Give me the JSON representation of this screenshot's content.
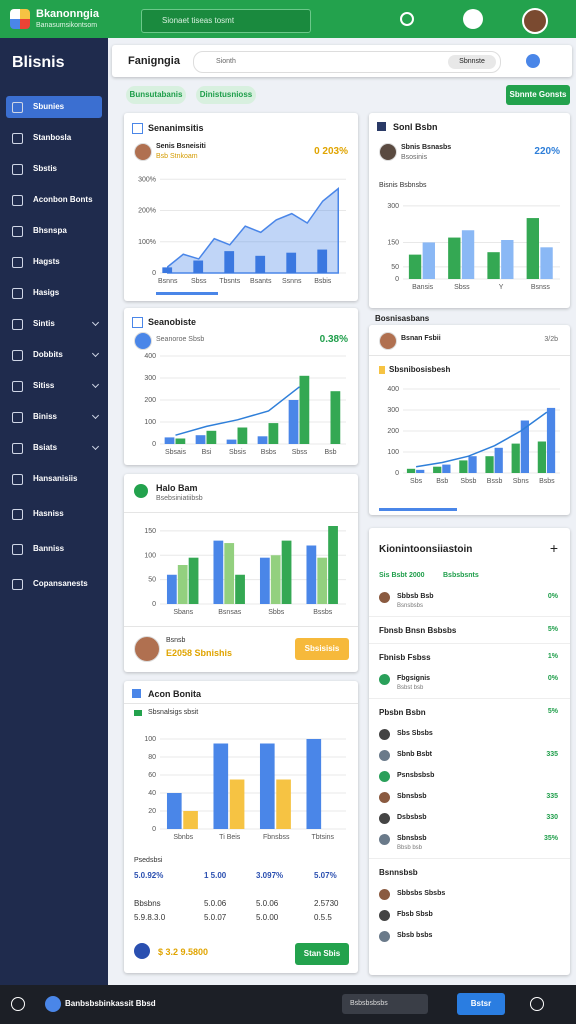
{
  "topbar": {
    "app_name": "Bkanonngia",
    "app_subtitle": "Banasumsikontsom",
    "search": "Sionaet tiseas tosmt"
  },
  "sidebar": {
    "title": "Blisnis",
    "items": [
      "Sbunies",
      "Stanbosla",
      "Sbstis",
      "Aconbon Bonts",
      "Bhsnspa",
      "Hagsts",
      "Hasigs",
      "Sintis",
      "Dobbits",
      "Sitiss",
      "Biniss",
      "Bsiats",
      "Hansanisiis",
      "Hasniss",
      "Banniss",
      "Copansanests"
    ]
  },
  "header": {
    "title": "Fanigngia",
    "search": "Sionth",
    "search_button": "Sbnnste",
    "chips": [
      "Bunsutabanis",
      "Dinistusnioss"
    ],
    "action": "Sbnnte Gonsts"
  },
  "card1": {
    "title": "Senanimsitis",
    "person": "Senis Bsneisiti",
    "person_sub": "Bsb Stnkoam",
    "metric": "0 203%",
    "chart": {
      "categories": [
        "Bsnns",
        null,
        "Sbss",
        null,
        "Tbsnts",
        null,
        "Bsants",
        null,
        "Ssnns",
        null,
        "Bsbis",
        null
      ],
      "series": [
        {
          "type": "area",
          "color": "#4a86e8",
          "values": [
            20,
            60,
            45,
            110,
            90,
            150,
            130,
            170,
            190,
            160,
            230,
            270
          ]
        },
        {
          "type": "bar",
          "color": "#3b78e0",
          "values": [
            18,
            null,
            40,
            null,
            70,
            null,
            55,
            null,
            65,
            null,
            75,
            null
          ]
        }
      ],
      "ylim": [
        0,
        320
      ],
      "yticks": [
        0,
        {
          "value": 100,
          "label": "100%"
        },
        {
          "value": 200,
          "label": "200%"
        },
        {
          "value": 300,
          "label": "300%"
        }
      ]
    }
  },
  "card2": {
    "title": "Seanobiste",
    "person": "Seanoroe Sbsb",
    "metric": "0.38%",
    "chart": {
      "categories": [
        "Sbsais",
        "Bsi",
        "Sbsis",
        "Bsbs",
        "Sbss",
        "Bsb"
      ],
      "series": [
        {
          "type": "bar",
          "color": "#4a86e8",
          "values": [
            30,
            40,
            20,
            35,
            200,
            null
          ]
        },
        {
          "type": "bar",
          "color": "#34a853",
          "values": [
            25,
            60,
            75,
            95,
            310,
            240
          ]
        },
        {
          "type": "line",
          "color": "#2f7fd9",
          "values": [
            40,
            80,
            110,
            150,
            260,
            null
          ]
        }
      ],
      "ylim": [
        0,
        400
      ],
      "yticks": [
        0,
        100,
        200,
        300,
        400
      ]
    }
  },
  "card3": {
    "title": "Halo Bam",
    "subtitle": "Bsebsiniatiibsb",
    "footer_name": "Bsnsb",
    "footer_value": "E2058 Sbnishis",
    "button": "Sbsisisis",
    "chart": {
      "categories": [
        "Sbans",
        "Bsnsas",
        "Sbbs",
        "Bssbs"
      ],
      "series": [
        {
          "type": "bar",
          "color": "#4a86e8",
          "values": [
            60,
            130,
            95,
            120
          ]
        },
        {
          "type": "bar",
          "color": "#93d07f",
          "values": [
            80,
            125,
            100,
            95
          ]
        },
        {
          "type": "bar",
          "color": "#34a853",
          "values": [
            95,
            60,
            130,
            160
          ]
        }
      ],
      "ylim": [
        0,
        160
      ],
      "yticks": [
        0,
        50,
        100,
        150
      ]
    }
  },
  "card4": {
    "title": "Acon Bonita",
    "select": "Sbsnalsigs sbsit",
    "footer_value": "$ 3.2 9.5800",
    "button": "Stan Sbis",
    "chart": {
      "categories": [
        "Sbnbs",
        "Ti Beis",
        "Fbnsbss",
        "Tbtsins"
      ],
      "series": [
        {
          "type": "bar",
          "color": "#4a86e8",
          "values": [
            40,
            95,
            95,
            100
          ]
        },
        {
          "type": "bar",
          "color": "#f6c343",
          "values": [
            20,
            55,
            55,
            null
          ]
        }
      ],
      "ylim": [
        0,
        100
      ],
      "yticks": [
        0,
        20,
        40,
        60,
        80,
        100
      ]
    },
    "table": {
      "title": "Psedsbsi",
      "rows": [
        [
          "5.0.92%",
          "1 5.00",
          "3.097%",
          "5.07%"
        ],
        [
          "Bbsbns",
          "5.0.06",
          "5.0.06",
          "2.5730"
        ],
        [
          "5.9.8.3.0",
          "5.0.07",
          "5.0.00",
          "0.5.5"
        ]
      ]
    }
  },
  "card5": {
    "title": "Sonl Bsbn",
    "person": "Sbnis Bsnasbs",
    "person_sub": "Bsosinis",
    "metric": "220%",
    "subtitle": "Bisnis Bsbnsbs",
    "chart": {
      "categories": [
        "Bansis",
        "Sbss",
        "Y",
        "Bsnss"
      ],
      "series": [
        {
          "type": "bar",
          "color": "#34a853",
          "values": [
            100,
            170,
            110,
            250
          ]
        },
        {
          "type": "bar",
          "color": "#8ab8f5",
          "values": [
            150,
            200,
            160,
            130
          ]
        }
      ],
      "ylim": [
        0,
        320
      ],
      "yticks": [
        0,
        50,
        150,
        300
      ]
    }
  },
  "section": {
    "title": "Bosnisasbans"
  },
  "card6": {
    "person": "Bsnan Fsbii",
    "person_sub": "3/2b",
    "title": "Sbsnibosisbesh",
    "chart": {
      "categories": [
        "Sbs",
        "Bsb",
        "Sbsb",
        "Bssb",
        "Sbns",
        "Bsbs"
      ],
      "series": [
        {
          "type": "bar",
          "color": "#34a853",
          "values": [
            20,
            30,
            60,
            80,
            140,
            150
          ]
        },
        {
          "type": "bar",
          "color": "#4a86e8",
          "values": [
            15,
            40,
            80,
            120,
            250,
            310
          ]
        },
        {
          "type": "line",
          "color": "#2f7fd9",
          "values": [
            30,
            50,
            80,
            130,
            200,
            290
          ]
        }
      ],
      "ylim": [
        0,
        400
      ],
      "yticks": [
        0,
        100,
        200,
        300,
        400
      ]
    }
  },
  "card7": {
    "title": "Kionintoonsiiastoin",
    "summary": [
      "Sis Bsbt 2000",
      "Bsbsbsnts"
    ],
    "rows": [
      {
        "name": "Sbbsb Bsb",
        "sub": "Bsnsbsbs",
        "value": "0%"
      },
      {
        "heading": "Fbnsb Bnsn Bsbsbs",
        "value": "5%"
      },
      {
        "heading": "Fbnisb Fsbss",
        "value": "1%"
      },
      {
        "name": "Fbgsignis",
        "sub": "Bsbst bsb",
        "value": "0%"
      },
      {
        "heading": "Pbsbn Bsbn",
        "value": "5%"
      },
      {
        "name": "Sbs Sbsbs"
      },
      {
        "name": "Sbnb Bsbt",
        "value": "335"
      },
      {
        "name": "Psnsbsbsb"
      },
      {
        "name": "Sbnsbsb",
        "value": "335"
      },
      {
        "name": "Dsbsbsb",
        "value": "330"
      },
      {
        "name": "Sbnsbsb",
        "sub": "Bbsb bsb",
        "value": "35%"
      },
      {
        "heading": "Bsnnsbsb"
      },
      {
        "name": "Sbbsbs Sbsbs"
      },
      {
        "name": "Fbsb Sbsb"
      },
      {
        "name": "Sbsb bsbs"
      }
    ]
  },
  "bottombar": {
    "title": "Banbsbsbinkassit Bbsd",
    "search": "Bsbsbsbsbs",
    "button": "Bstsr"
  }
}
